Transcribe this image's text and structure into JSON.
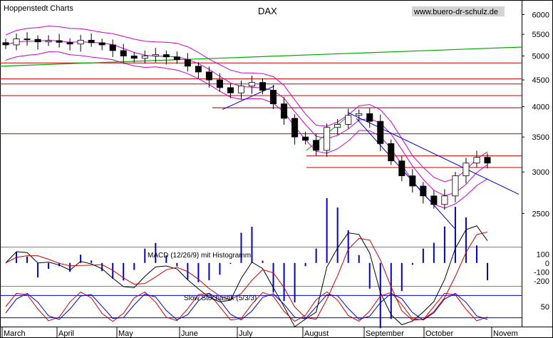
{
  "chart_data": [
    {
      "type": "candlestick",
      "source_label": "Hoppenstedt Charts",
      "title": "DAX",
      "watermark": "www.buero-dr-schulz.de",
      "y_scale": "log",
      "ylim": [
        2200,
        6200
      ],
      "y_ticks": [
        6000,
        5500,
        5000,
        4500,
        4000,
        3500,
        3000,
        2500
      ],
      "x_ticks": [
        "March",
        "April",
        "May",
        "June",
        "July",
        "August",
        "September",
        "October",
        "Novem"
      ],
      "grid": false,
      "weekly_closes": [
        5250,
        5390,
        5380,
        5320,
        5350,
        5310,
        5270,
        5360,
        5300,
        5250,
        5120,
        5000,
        4950,
        5000,
        5030,
        4980,
        4920,
        4780,
        4660,
        4500,
        4350,
        4250,
        4380,
        4450,
        4300,
        4050,
        3800,
        3500,
        3450,
        3300,
        3650,
        3700,
        3850,
        3880,
        3750,
        3400,
        3150,
        2950,
        2820,
        2700,
        2600,
        2700,
        2950,
        3120,
        3200,
        3120
      ],
      "horizontal_levels": [
        4850,
        4520,
        4420,
        4200,
        3980,
        3550,
        3220,
        3060
      ],
      "overlays": [
        "Bollinger bands",
        "moving average",
        "trend lines"
      ],
      "colors": {
        "candles": "#000000",
        "bands": "#cc00cc",
        "levels": "#cc0000",
        "trend": "#0000cc",
        "long_ma": "#00aa00"
      }
    },
    {
      "type": "line+histogram",
      "label": "MACD (12/26/9) mit Histogramm",
      "y_ticks": [
        100,
        0,
        -100,
        -200
      ],
      "series": [
        {
          "name": "MACD",
          "color": "#000000"
        },
        {
          "name": "Signal",
          "color": "#cc0000"
        },
        {
          "name": "Histogramm",
          "color": "#0000cc"
        }
      ]
    },
    {
      "type": "line",
      "label": "Slow Stochastik (5/3/3)",
      "y_ticks": [
        50
      ],
      "levels": [
        80,
        20
      ],
      "series": [
        {
          "name": "%K",
          "color": "#cc0000"
        },
        {
          "name": "%D",
          "color": "#0000cc"
        }
      ]
    }
  ]
}
